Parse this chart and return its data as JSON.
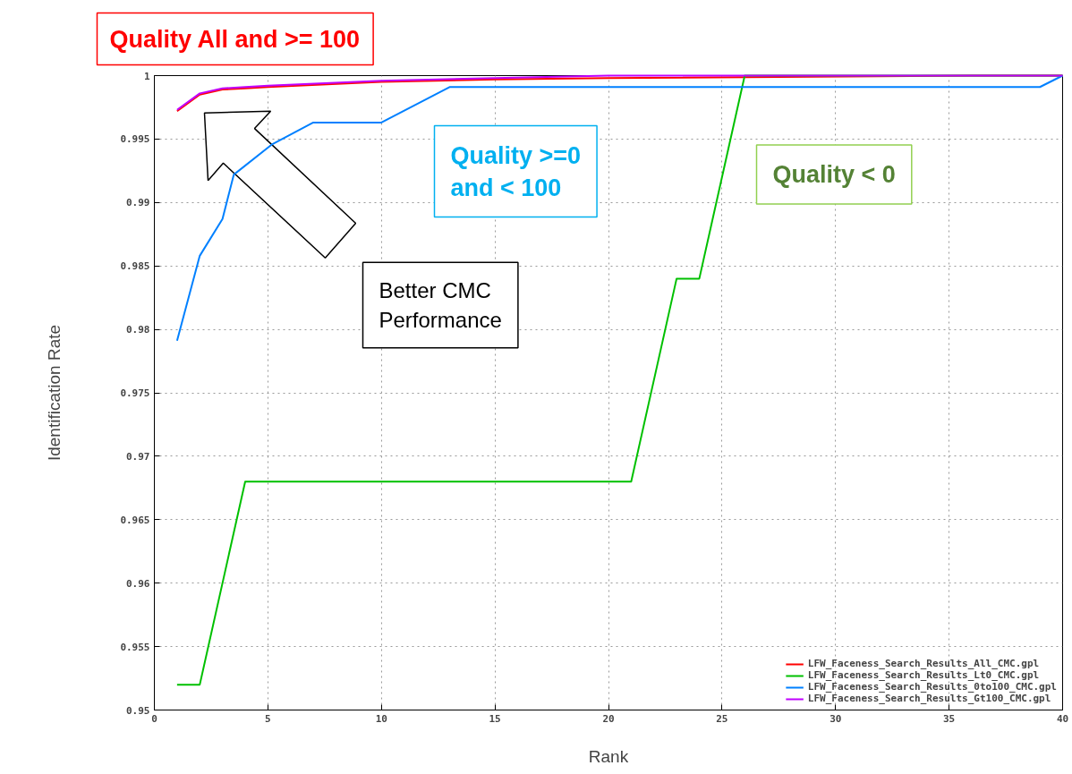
{
  "chart_data": {
    "type": "line",
    "xlabel": "Rank",
    "ylabel": "Identification Rate",
    "xlim": [
      0,
      40
    ],
    "xticks": [
      0,
      5,
      10,
      15,
      20,
      25,
      30,
      35,
      40
    ],
    "ylim": [
      0.95,
      1
    ],
    "yticks": [
      0.95,
      0.955,
      0.96,
      0.965,
      0.97,
      0.975,
      0.98,
      0.985,
      0.99,
      0.995,
      1
    ],
    "grid": true,
    "legend": "bottom right",
    "marker": "none",
    "line_style": "solid",
    "annotations": [
      "Quality All and >= 100",
      "Quality >=0\nand < 100",
      "Quality < 0",
      "Better CMC\nPerformance"
    ],
    "series": [
      {
        "name": "LFW_Faceness_Search_Results_All_CMC.gpl",
        "color": "#ff0000",
        "x": [
          1,
          2,
          3,
          4,
          5,
          10,
          15,
          20,
          36,
          40
        ],
        "values": [
          0.9972,
          0.9985,
          0.9989,
          0.999,
          0.9991,
          0.9995,
          0.9997,
          0.9998,
          1,
          1
        ]
      },
      {
        "name": "LFW_Faceness_Search_Results_Lt0_CMC.gpl",
        "color": "#00c000",
        "x": [
          1,
          2,
          4,
          21,
          23,
          24,
          26,
          40
        ],
        "values": [
          0.952,
          0.952,
          0.968,
          0.968,
          0.984,
          0.984,
          1,
          1
        ]
      },
      {
        "name": "LFW_Faceness_Search_Results_0to100_CMC.gpl",
        "color": "#0080ff",
        "x": [
          1,
          2,
          3,
          3.5,
          5.2,
          7,
          10,
          13,
          39,
          40
        ],
        "values": [
          0.9791,
          0.9858,
          0.9887,
          0.9922,
          0.9946,
          0.9963,
          0.9963,
          0.9991,
          0.9991,
          1
        ]
      },
      {
        "name": "LFW_Faceness_Search_Results_Gt100_CMC.gpl",
        "color": "#c000ff",
        "x": [
          1,
          2,
          3,
          4,
          5,
          10,
          15,
          20,
          26,
          40
        ],
        "values": [
          0.9973,
          0.9986,
          0.999,
          0.9991,
          0.9992,
          0.9996,
          0.9998,
          1,
          1,
          1
        ]
      }
    ]
  }
}
